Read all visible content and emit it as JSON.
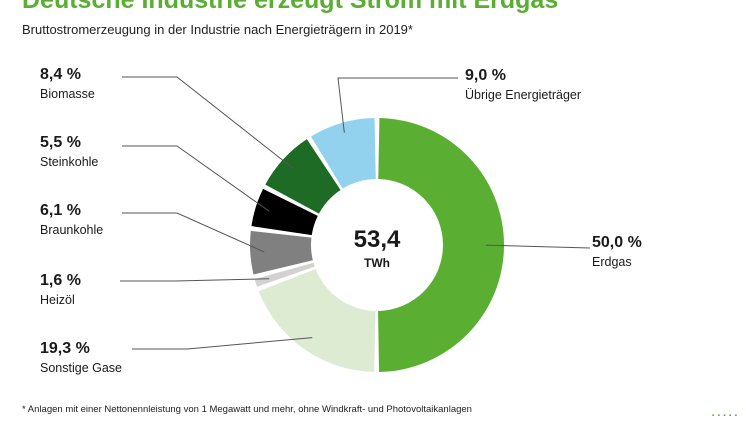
{
  "header": {
    "title": "Deutsche Industrie erzeugt Strom mit Erdgas",
    "subtitle": "Bruttostromerzeugung in der Industrie nach Energieträgern in 2019*"
  },
  "chart_data": {
    "type": "pie",
    "donut": true,
    "center_value": "53,4",
    "center_unit": "TWh",
    "categories": [
      "Erdgas",
      "Sonstige Gase",
      "Heizöl",
      "Braunkohle",
      "Steinkohle",
      "Biomasse",
      "Übrige Energieträger"
    ],
    "values": [
      50.0,
      19.3,
      1.6,
      6.1,
      5.5,
      8.4,
      9.0
    ],
    "value_labels": [
      "50,0 %",
      "19,3 %",
      "1,6 %",
      "6,1 %",
      "5,5 %",
      "8,4 %",
      "9,0 %"
    ],
    "colors": [
      "#5aae32",
      "#dcebd1",
      "#d2d2d2",
      "#808080",
      "#000000",
      "#1e6b25",
      "#93d2ee"
    ]
  },
  "footnote": "* Anlagen mit einer Nettonennleistung von 1 Megawatt und mehr, ohne Windkraft- und Photovoltaikanlagen",
  "brand": "·····"
}
